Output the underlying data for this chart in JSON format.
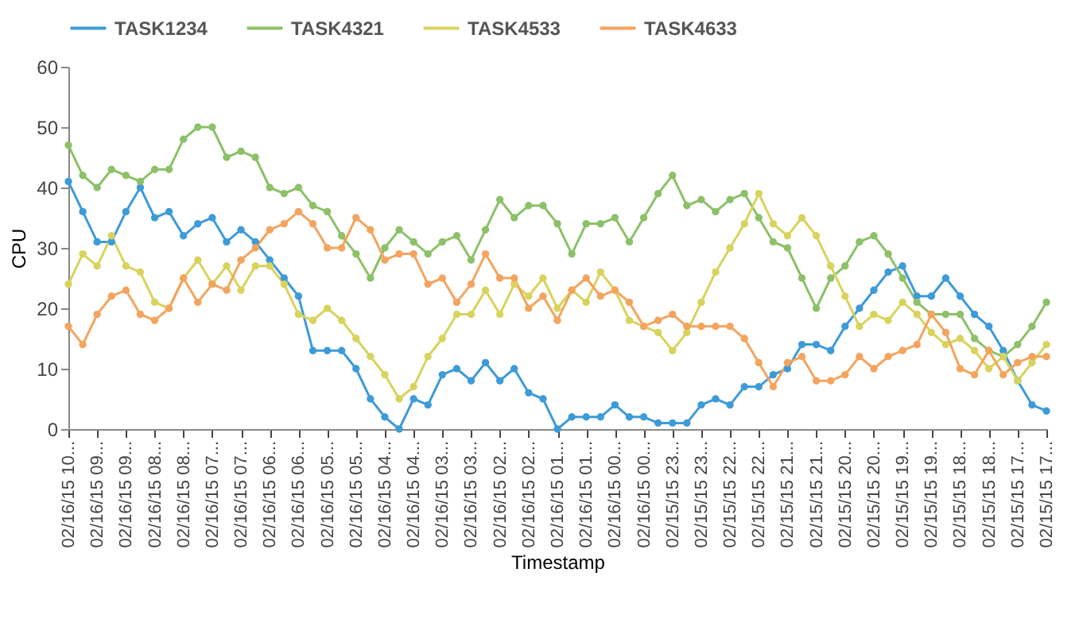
{
  "chart_data": {
    "type": "line",
    "xlabel": "Timestamp",
    "ylabel": "CPU",
    "ylim": [
      0,
      60
    ],
    "yticks": [
      0,
      10,
      20,
      30,
      40,
      50,
      60
    ],
    "grid": false,
    "legend": "top left",
    "marker": "circle",
    "line_style": "solid",
    "categories": [
      "02/16/15 10...",
      null,
      "02/16/15 09...",
      null,
      "02/16/15 09...",
      null,
      "02/16/15 08...",
      null,
      "02/16/15 08...",
      null,
      "02/16/15 07...",
      null,
      "02/16/15 07...",
      null,
      "02/16/15 06...",
      null,
      "02/16/15 06...",
      null,
      "02/16/15 05...",
      null,
      "02/16/15 05...",
      null,
      "02/16/15 04...",
      null,
      "02/16/15 04...",
      null,
      "02/16/15 03...",
      null,
      "02/16/15 03...",
      null,
      "02/16/15 02...",
      null,
      "02/16/15 02...",
      null,
      "02/16/15 01...",
      null,
      "02/16/15 01...",
      null,
      "02/16/15 00...",
      null,
      "02/16/15 00...",
      null,
      "02/15/15 23...",
      null,
      "02/15/15 23...",
      null,
      "02/15/15 22...",
      null,
      "02/15/15 22...",
      null,
      "02/15/15 21...",
      null,
      "02/15/15 21...",
      null,
      "02/15/15 20...",
      null,
      "02/15/15 20...",
      null,
      "02/15/15 19...",
      null,
      "02/15/15 19...",
      null,
      "02/15/15 18...",
      null,
      "02/15/15 18...",
      null,
      "02/15/15 17...",
      null,
      "02/15/15 17..."
    ],
    "series": [
      {
        "name": "TASK1234",
        "color": "#3d9bd8",
        "values": [
          41,
          36,
          31,
          31,
          36,
          40,
          35,
          36,
          32,
          34,
          35,
          31,
          33,
          31,
          28,
          25,
          22,
          13,
          13,
          13,
          10,
          5,
          2,
          0,
          5,
          4,
          9,
          10,
          8,
          11,
          8,
          10,
          6,
          5,
          0,
          2,
          2,
          2,
          4,
          2,
          2,
          1,
          1,
          1,
          4,
          5,
          4,
          7,
          7,
          9,
          10,
          14,
          14,
          13,
          17,
          20,
          23,
          26,
          27,
          22,
          22,
          25,
          22,
          19,
          17,
          13,
          8,
          4,
          3
        ]
      },
      {
        "name": "TASK4321",
        "color": "#8cc168",
        "values": [
          47,
          42,
          40,
          43,
          42,
          41,
          43,
          43,
          48,
          50,
          50,
          45,
          46,
          45,
          40,
          39,
          40,
          37,
          36,
          32,
          29,
          25,
          30,
          33,
          31,
          29,
          31,
          32,
          28,
          33,
          38,
          35,
          37,
          37,
          34,
          29,
          34,
          34,
          35,
          31,
          35,
          39,
          42,
          37,
          38,
          36,
          38,
          39,
          35,
          31,
          30,
          25,
          20,
          25,
          27,
          31,
          32,
          29,
          25,
          21,
          19,
          19,
          19,
          15,
          13,
          12,
          14,
          17,
          21
        ]
      },
      {
        "name": "TASK4533",
        "color": "#d8d35c",
        "values": [
          24,
          29,
          27,
          32,
          27,
          26,
          21,
          20,
          25,
          28,
          24,
          27,
          23,
          27,
          27,
          24,
          19,
          18,
          20,
          18,
          15,
          12,
          9,
          5,
          7,
          12,
          15,
          19,
          19,
          23,
          19,
          24,
          22,
          25,
          20,
          23,
          21,
          26,
          23,
          18,
          17,
          16,
          13,
          16,
          21,
          26,
          30,
          34,
          39,
          34,
          32,
          35,
          32,
          27,
          22,
          17,
          19,
          18,
          21,
          19,
          16,
          14,
          15,
          13,
          10,
          12,
          8,
          11,
          14
        ]
      },
      {
        "name": "TASK4633",
        "color": "#f4a45e",
        "values": [
          17,
          14,
          19,
          22,
          23,
          19,
          18,
          20,
          25,
          21,
          24,
          23,
          28,
          30,
          33,
          34,
          36,
          34,
          30,
          30,
          35,
          33,
          28,
          29,
          29,
          24,
          25,
          21,
          24,
          29,
          25,
          25,
          20,
          22,
          18,
          23,
          25,
          22,
          23,
          21,
          17,
          18,
          19,
          17,
          17,
          17,
          17,
          15,
          11,
          7,
          11,
          12,
          8,
          8,
          9,
          12,
          10,
          12,
          13,
          14,
          19,
          16,
          10,
          9,
          13,
          9,
          11,
          12,
          12
        ]
      }
    ]
  }
}
